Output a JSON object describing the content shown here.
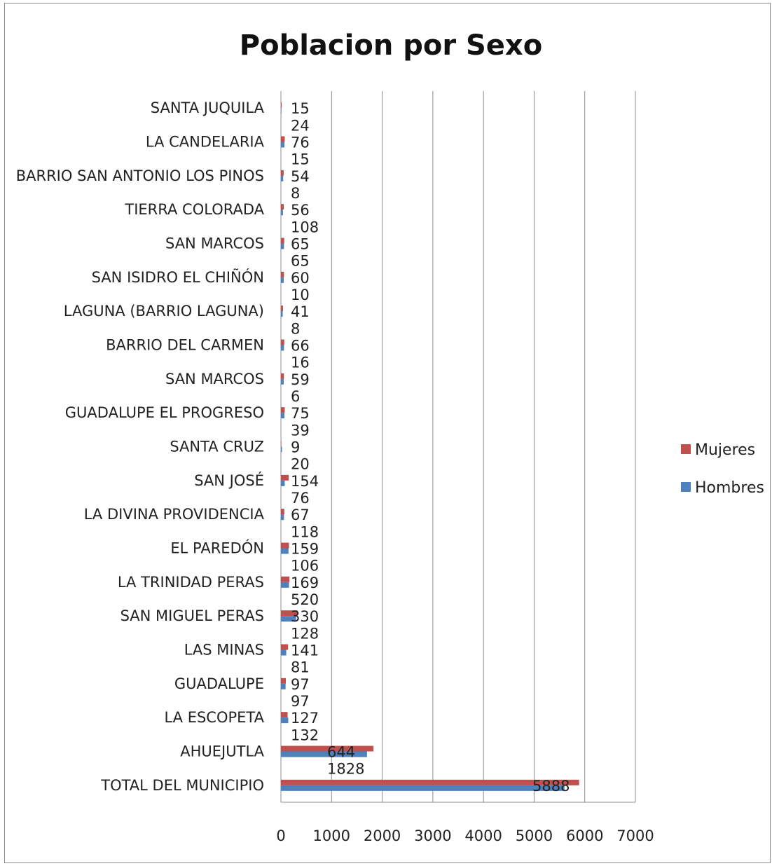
{
  "chart_data": {
    "type": "bar",
    "orientation": "horizontal",
    "title": "Poblacion por Sexo",
    "categories": [
      "TOTAL DEL MUNICIPIO",
      "AHUEJUTLA",
      "LA ESCOPETA",
      "GUADALUPE",
      "LAS MINAS",
      "SAN MIGUEL PERAS",
      "LA TRINIDAD PERAS",
      "EL PAREDÓN",
      "LA DIVINA PROVIDENCIA",
      "SAN JOSÉ",
      "SANTA CRUZ",
      "GUADALUPE EL PROGRESO",
      "SAN MARCOS",
      "BARRIO DEL CARMEN",
      "LAGUNA (BARRIO LAGUNA)",
      "SAN ISIDRO EL CHIÑÓN",
      "SAN MARCOS",
      "TIERRA COLORADA",
      "BARRIO SAN ANTONIO LOS PINOS",
      "LA CANDELARIA",
      "SANTA JUQUILA"
    ],
    "series": [
      {
        "name": "Hombres",
        "color": "#4f81bd",
        "values": [
          5600,
          1700,
          145,
          92,
          105,
          300,
          160,
          150,
          60,
          75,
          20,
          70,
          55,
          60,
          35,
          55,
          60,
          40,
          45,
          70,
          10
        ]
      },
      {
        "name": "Mujeres",
        "color": "#c0504d",
        "values": [
          5888,
          1828,
          132,
          97,
          141,
          330,
          169,
          159,
          67,
          154,
          9,
          75,
          59,
          66,
          41,
          60,
          65,
          56,
          54,
          76,
          15
        ]
      }
    ],
    "data_labels": [
      [
        "5888",
        "1828"
      ],
      [
        "644",
        "132"
      ],
      [
        "127",
        "97"
      ],
      [
        "97",
        "81"
      ],
      [
        "141",
        "128"
      ],
      [
        "330",
        "520"
      ],
      [
        "169",
        "106"
      ],
      [
        "159",
        "118"
      ],
      [
        "67",
        "76"
      ],
      [
        "154",
        "20"
      ],
      [
        "9",
        "39"
      ],
      [
        "75",
        "6"
      ],
      [
        "59",
        "16"
      ],
      [
        "66",
        "8"
      ],
      [
        "41",
        "10"
      ],
      [
        "60",
        "65"
      ],
      [
        "65",
        "108"
      ],
      [
        "56",
        "8"
      ],
      [
        "54",
        "15"
      ],
      [
        "76",
        "24"
      ],
      [
        "15",
        ""
      ]
    ],
    "xlim": [
      0,
      7000
    ],
    "xticks": [
      "0",
      "1000",
      "2000",
      "3000",
      "4000",
      "5000",
      "6000",
      "7000"
    ],
    "grid": true,
    "legend": {
      "placement": "right",
      "items": [
        {
          "label": "Mujeres",
          "color": "#c0504d"
        },
        {
          "label": "Hombres",
          "color": "#4f81bd"
        }
      ]
    }
  }
}
